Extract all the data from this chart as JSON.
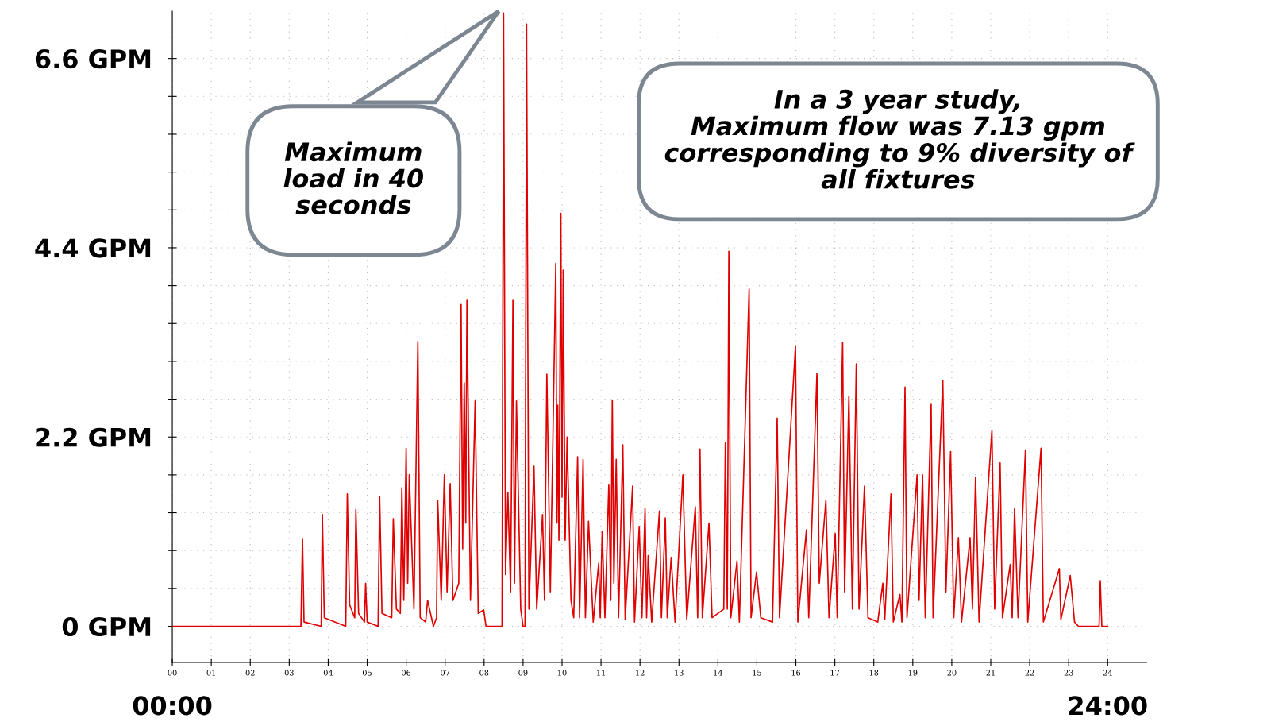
{
  "chart_data": {
    "type": "line",
    "x": [
      0,
      3.3,
      3.34,
      3.38,
      3.82,
      3.85,
      3.9,
      4.45,
      4.49,
      4.55,
      4.68,
      4.71,
      4.78,
      4.93,
      4.96,
      5.0,
      5.28,
      5.32,
      5.38,
      5.63,
      5.67,
      5.75,
      5.85,
      5.89,
      5.94,
      6.0,
      6.04,
      6.08,
      6.2,
      6.3,
      6.36,
      6.5,
      6.55,
      6.7,
      6.78,
      6.81,
      6.9,
      6.98,
      7.05,
      7.13,
      7.2,
      7.35,
      7.41,
      7.45,
      7.49,
      7.53,
      7.56,
      7.65,
      7.77,
      7.85,
      7.99,
      8.05,
      8.46,
      8.5,
      8.55,
      8.61,
      8.68,
      8.74,
      8.78,
      8.83,
      8.94,
      9.0,
      9.05,
      9.09,
      9.15,
      9.28,
      9.35,
      9.5,
      9.55,
      9.61,
      9.7,
      9.84,
      9.87,
      9.89,
      9.92,
      9.97,
      10.0,
      10.03,
      10.08,
      10.13,
      10.23,
      10.3,
      10.4,
      10.45,
      10.54,
      10.6,
      10.68,
      10.8,
      10.94,
      10.98,
      11.03,
      11.1,
      11.2,
      11.25,
      11.29,
      11.33,
      11.39,
      11.45,
      11.56,
      11.62,
      11.81,
      11.86,
      11.98,
      12.05,
      12.13,
      12.17,
      12.21,
      12.3,
      12.5,
      12.55,
      12.65,
      12.7,
      12.8,
      12.9,
      13.1,
      13.2,
      13.42,
      13.48,
      13.54,
      13.6,
      13.77,
      13.85,
      14.15,
      14.19,
      14.24,
      14.28,
      14.33,
      14.49,
      14.55,
      14.8,
      14.85,
      14.99,
      15.1,
      15.4,
      15.52,
      15.58,
      15.99,
      16.05,
      16.27,
      16.33,
      16.54,
      16.6,
      16.77,
      16.85,
      17.01,
      17.06,
      17.2,
      17.25,
      17.36,
      17.45,
      17.55,
      17.62,
      17.76,
      17.85,
      18.1,
      18.23,
      18.28,
      18.44,
      18.5,
      18.67,
      18.72,
      18.8,
      18.85,
      19.11,
      19.16,
      19.25,
      19.32,
      19.47,
      19.52,
      19.77,
      19.85,
      19.97,
      20.05,
      20.17,
      20.25,
      20.47,
      20.53,
      20.61,
      20.7,
      21.03,
      21.1,
      21.24,
      21.3,
      21.5,
      21.55,
      21.61,
      21.7,
      21.89,
      21.95,
      22.29,
      22.35,
      22.76,
      22.8,
      23.04,
      23.15,
      23.25,
      23.78,
      23.81,
      23.85,
      24
    ],
    "series": [
      {
        "color": "#e00000",
        "values": [
          0,
          0,
          1.02,
          0.05,
          0,
          1.3,
          0.1,
          0,
          1.54,
          0.25,
          0.1,
          1.36,
          0.15,
          0.05,
          0.5,
          0.05,
          0,
          1.51,
          0.15,
          0.1,
          1.25,
          0.2,
          0.15,
          1.61,
          0.3,
          2.07,
          0.5,
          1.76,
          0.2,
          3.31,
          0.1,
          0.05,
          0.3,
          0,
          0.1,
          1.46,
          0.3,
          1.76,
          0.4,
          1.66,
          0.3,
          0.5,
          3.74,
          0.9,
          2.83,
          1.2,
          3.79,
          0.3,
          2.62,
          0.15,
          0.19,
          0,
          0,
          7.13,
          0.6,
          1.56,
          0.4,
          3.79,
          0.5,
          2.62,
          0.2,
          0,
          0,
          7.0,
          0.2,
          1.86,
          0.2,
          1.3,
          0.3,
          2.93,
          0.4,
          4.22,
          1.2,
          2.57,
          1.0,
          4.8,
          1.5,
          4.14,
          1.0,
          2.2,
          0.3,
          0.1,
          1.97,
          0.1,
          1.94,
          0.1,
          1.22,
          0.05,
          0.73,
          0.1,
          1.1,
          0.1,
          1.65,
          0.3,
          2.63,
          0.5,
          1.94,
          0.1,
          2.11,
          0.08,
          1.63,
          0.05,
          1.16,
          0.1,
          1.37,
          0.1,
          0.82,
          0.05,
          1.34,
          0.1,
          1.26,
          0.1,
          0.8,
          0.05,
          1.76,
          0.08,
          1.39,
          0.1,
          2.06,
          0.1,
          1.2,
          0.1,
          0.2,
          2.14,
          0.2,
          4.36,
          0.1,
          0.76,
          0.05,
          3.92,
          0.1,
          0.63,
          0.1,
          0.05,
          2.42,
          0.1,
          3.26,
          0.05,
          1.12,
          0.1,
          2.94,
          0.5,
          1.46,
          0.1,
          1.08,
          0.1,
          3.3,
          0.4,
          2.68,
          0.2,
          3.05,
          0.2,
          1.63,
          0.1,
          0.05,
          0.5,
          0.08,
          1.54,
          0.05,
          0.37,
          0.05,
          2.78,
          0.1,
          1.76,
          0.3,
          1.76,
          0.1,
          2.58,
          0.1,
          2.86,
          0.4,
          2.03,
          0.1,
          1.03,
          0.05,
          1.03,
          0.2,
          1.73,
          0.05,
          2.28,
          0.2,
          1.9,
          0.1,
          0.72,
          0.1,
          1.37,
          0.1,
          2.05,
          0.05,
          2.07,
          0.05,
          0.67,
          0.08,
          0.59,
          0.05,
          0,
          0,
          0.53,
          0,
          0
        ]
      }
    ],
    "xlim": [
      0,
      25
    ],
    "ylim": [
      -0.42,
      7.15
    ],
    "xticks": [
      {
        "value": 0,
        "label": "00"
      },
      {
        "value": 1,
        "label": "01"
      },
      {
        "value": 2,
        "label": "02"
      },
      {
        "value": 3,
        "label": "03"
      },
      {
        "value": 4,
        "label": "04"
      },
      {
        "value": 5,
        "label": "05"
      },
      {
        "value": 6,
        "label": "06"
      },
      {
        "value": 7,
        "label": "07"
      },
      {
        "value": 8,
        "label": "08"
      },
      {
        "value": 9,
        "label": "09"
      },
      10,
      11,
      12,
      13,
      14,
      15,
      16,
      17,
      18,
      19,
      20,
      21,
      22,
      23,
      24
    ],
    "yticks": [
      {
        "value": 0,
        "label": "0 GPM"
      },
      {
        "value": 0.44,
        "label": null
      },
      {
        "value": 0.88,
        "label": null
      },
      {
        "value": 1.32,
        "label": null
      },
      {
        "value": 1.76,
        "label": null
      },
      {
        "value": 2.2,
        "label": "2.2 GPM"
      },
      {
        "value": 2.64,
        "label": null
      },
      {
        "value": 3.08,
        "label": null
      },
      {
        "value": 3.52,
        "label": null
      },
      {
        "value": 3.96,
        "label": null
      },
      {
        "value": 4.4,
        "label": "4.4 GPM"
      },
      {
        "value": 4.84,
        "label": null
      },
      {
        "value": 5.28,
        "label": null
      },
      {
        "value": 5.72,
        "label": null
      },
      {
        "value": 6.16,
        "label": null
      },
      {
        "value": 6.6,
        "label": "6.6 GPM"
      }
    ],
    "grid": true,
    "line_style": "solid",
    "annotations": [
      "Maximum\nload in 40\nseconds",
      "In a 3 year study,\nMaximum flow was 7.13 gpm\ncorresponding to 9% diversity of\nall fixtures",
      "00:00",
      "24:00"
    ]
  }
}
